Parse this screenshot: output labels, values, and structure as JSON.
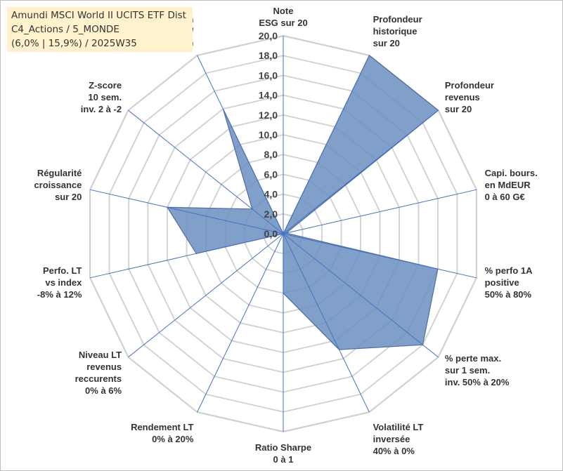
{
  "title": {
    "line1": "Amundi MSCI World II UCITS ETF Dist",
    "line2": "C4_Actions / 5_MONDE",
    "line3": "(6,0% | 15,9%) / 2025W35"
  },
  "colors": {
    "fill": "#6a8fbf",
    "fill_opacity": 0.85,
    "stroke": "#4f6f9f",
    "spokes": "#4472c4",
    "grid": "#d0d0d0",
    "title_bg": "#fff2cc"
  },
  "chart_data": {
    "type": "radar",
    "rmin": 0,
    "rmax": 20,
    "ticks": [
      "0,0",
      "2,0",
      "4,0",
      "6,0",
      "8,0",
      "10,0",
      "12,0",
      "14,0",
      "16,0",
      "18,0",
      "20,0"
    ],
    "axes": [
      {
        "label": [
          "Note",
          "ESG sur 20"
        ],
        "value": 0
      },
      {
        "label": [
          "Profondeur",
          "historique",
          "sur 20"
        ],
        "value": 20
      },
      {
        "label": [
          "Profondeur",
          "revenus",
          "sur 20"
        ],
        "value": 20
      },
      {
        "label": [
          "Capi. bours.",
          "en MdEUR",
          "0 à 60 G€"
        ],
        "value": 0.3
      },
      {
        "label": [
          "% perfo 1A",
          "positive",
          "50% à 80%"
        ],
        "value": 16
      },
      {
        "label": [
          "% perte max.",
          "sur 1 sem.",
          "inv. 50% à 20%"
        ],
        "value": 18
      },
      {
        "label": [
          "Volatilité LT",
          "inversée",
          "40% à 0%"
        ],
        "value": 13
      },
      {
        "label": [
          "Ratio Sharpe",
          "0 à 1"
        ],
        "value": 6
      },
      {
        "label": [
          "Rendement LT",
          "0% à 20%"
        ],
        "value": 0
      },
      {
        "label": [
          "Niveau LT",
          "revenus",
          "reccurents",
          "0% à 6%"
        ],
        "value": 0
      },
      {
        "label": [
          "Perfo. LT",
          "vs index",
          "-8% à 12%"
        ],
        "value": 9
      },
      {
        "label": [
          "Régularité",
          "croissance",
          "sur 20"
        ],
        "value": 12
      },
      {
        "label": [
          "Z-score",
          "10 sem.",
          "inv. 2 à -2"
        ],
        "value": 4
      },
      {
        "label": [
          "Momentum",
          "Achat (20) /",
          "Vente (0)"
        ],
        "value": 14
      }
    ]
  }
}
